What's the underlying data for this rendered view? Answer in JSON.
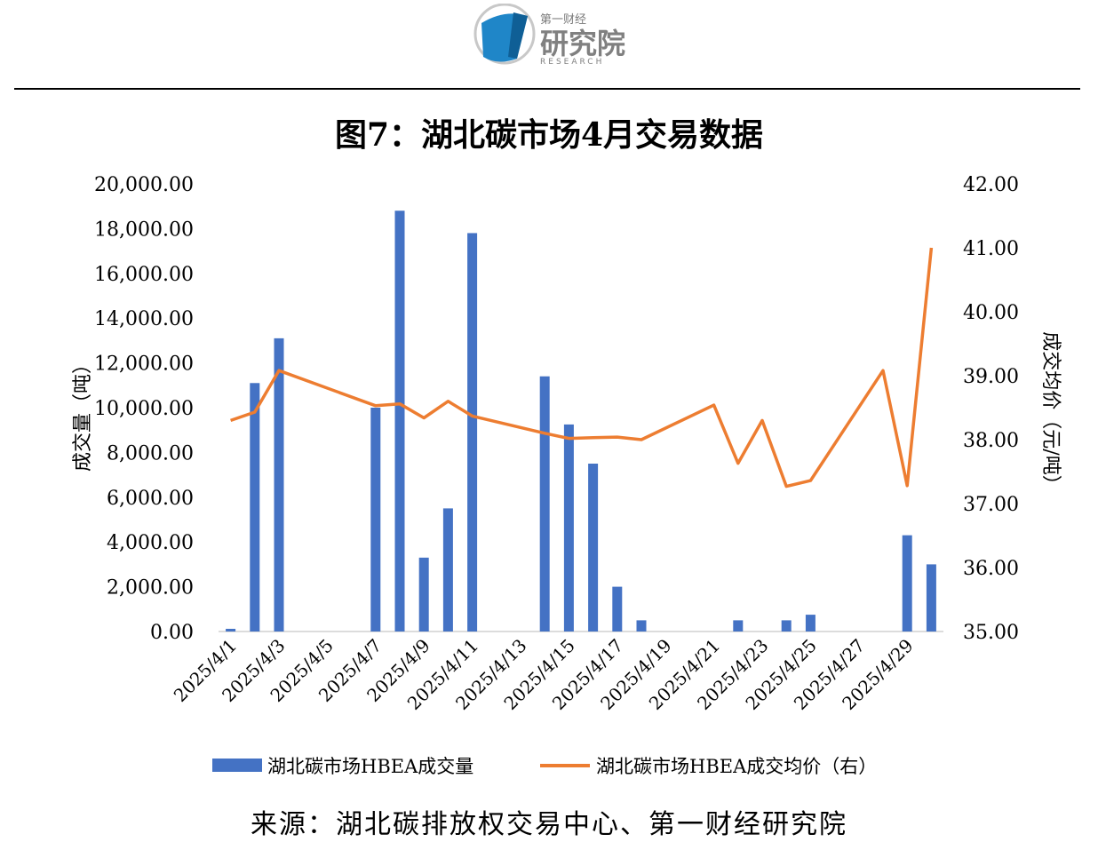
{
  "header": {
    "brand_small": "第一财经",
    "brand_main": "研究院",
    "brand_sub": "RESEARCH"
  },
  "colors": {
    "bar": "#4472C4",
    "line": "#ED7D31",
    "logo_blue": "#1F86C8"
  },
  "source_note": "来源：湖北碳排放权交易中心、第一财经研究院",
  "chart_data": {
    "type": "bar",
    "title": "图7：湖北碳市场4月交易数据",
    "ylabel": "成交量（吨）",
    "y2label": "成交均价（元/吨）",
    "ylim": [
      0,
      20000
    ],
    "y2lim": [
      35,
      42
    ],
    "y_ticks": [
      "0.00",
      "2,000.00",
      "4,000.00",
      "6,000.00",
      "8,000.00",
      "10,000.00",
      "12,000.00",
      "14,000.00",
      "16,000.00",
      "18,000.00",
      "20,000.00"
    ],
    "y2_ticks": [
      "35.00",
      "36.00",
      "37.00",
      "38.00",
      "39.00",
      "40.00",
      "41.00",
      "42.00"
    ],
    "x_tick_labels": [
      "2025/4/1",
      "2025/4/3",
      "2025/4/5",
      "2025/4/7",
      "2025/4/9",
      "2025/4/11",
      "2025/4/13",
      "2025/4/15",
      "2025/4/17",
      "2025/4/19",
      "2025/4/21",
      "2025/4/23",
      "2025/4/25",
      "2025/4/27",
      "2025/4/29"
    ],
    "categories": [
      "2025/4/1",
      "2025/4/2",
      "2025/4/3",
      "2025/4/4",
      "2025/4/5",
      "2025/4/6",
      "2025/4/7",
      "2025/4/8",
      "2025/4/9",
      "2025/4/10",
      "2025/4/11",
      "2025/4/12",
      "2025/4/13",
      "2025/4/14",
      "2025/4/15",
      "2025/4/16",
      "2025/4/17",
      "2025/4/18",
      "2025/4/19",
      "2025/4/20",
      "2025/4/21",
      "2025/4/22",
      "2025/4/23",
      "2025/4/24",
      "2025/4/25",
      "2025/4/26",
      "2025/4/27",
      "2025/4/28",
      "2025/4/29",
      "2025/4/30"
    ],
    "legend_position": "bottom",
    "grid": false,
    "series": [
      {
        "name": "湖北碳市场HBEA成交量",
        "type": "bar",
        "axis": "left",
        "values": [
          120,
          11100,
          13100,
          null,
          null,
          null,
          10000,
          18800,
          3300,
          5500,
          17800,
          null,
          null,
          11400,
          9250,
          7500,
          2000,
          500,
          null,
          null,
          null,
          500,
          null,
          500,
          750,
          null,
          null,
          null,
          4300,
          3000
        ]
      },
      {
        "name": "湖北碳市场HBEA成交均价（右）",
        "type": "line",
        "axis": "right",
        "values": [
          38.3,
          38.43,
          39.08,
          null,
          null,
          null,
          38.53,
          38.56,
          38.34,
          38.6,
          38.37,
          null,
          null,
          38.1,
          38.02,
          38.03,
          38.04,
          38.0,
          null,
          null,
          38.54,
          37.63,
          38.3,
          37.27,
          37.36,
          null,
          null,
          39.08,
          37.28,
          41.0
        ]
      }
    ]
  }
}
